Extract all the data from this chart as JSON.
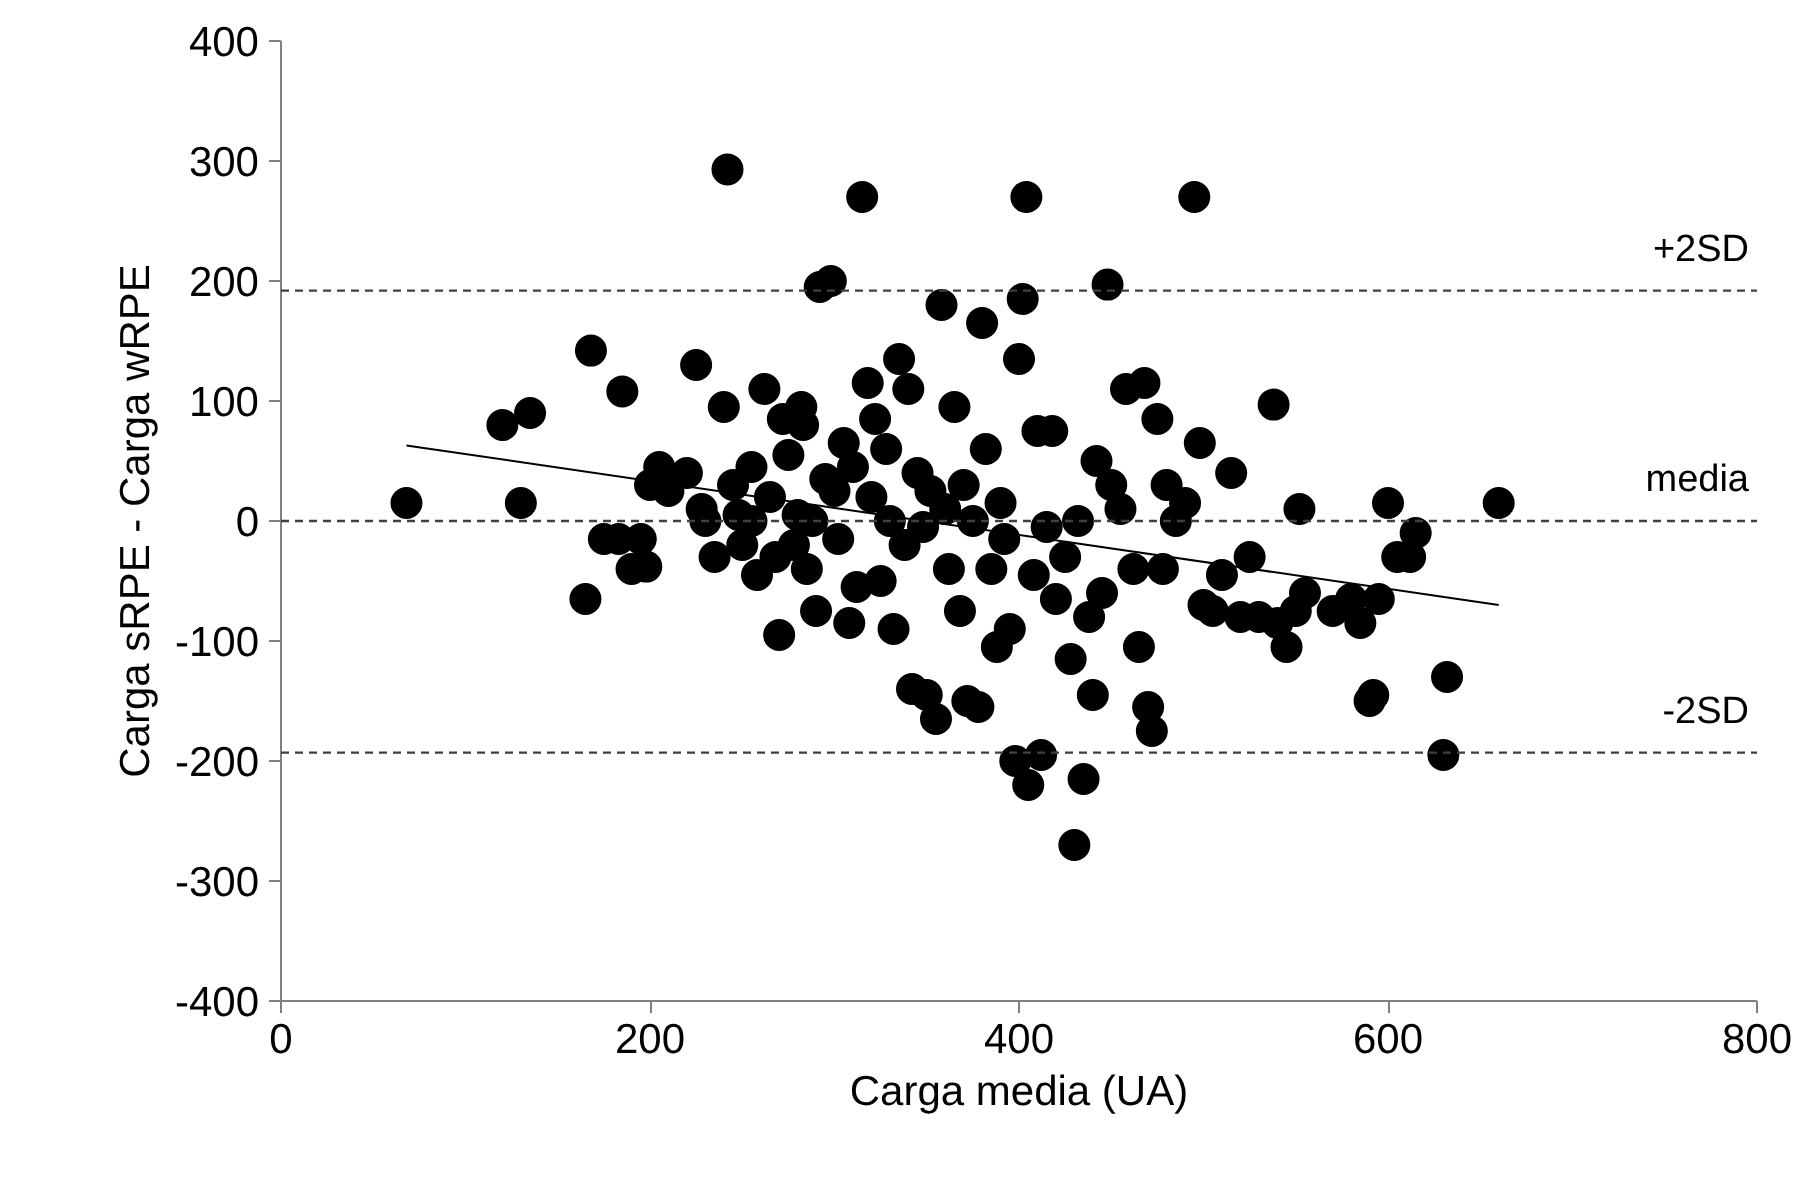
{
  "chart_data": {
    "type": "scatter",
    "xlabel": "Carga media (UA)",
    "ylabel": "Carga sRPE - Carga wRPE",
    "xlim": [
      0,
      800
    ],
    "xticks": [
      0,
      200,
      400,
      600,
      800
    ],
    "ylim": [
      -400,
      400
    ],
    "yticks": [
      -400,
      -300,
      -200,
      -100,
      0,
      100,
      200,
      300,
      400
    ],
    "grid": false,
    "series": [
      {
        "color": "#000000",
        "marker": "circle",
        "x": [
          68,
          120,
          130,
          135,
          165,
          168,
          175,
          185,
          183,
          190,
          195,
          198,
          200,
          205,
          210,
          220,
          225,
          228,
          230,
          235,
          240,
          242,
          245,
          248,
          250,
          255,
          255,
          258,
          262,
          265,
          268,
          270,
          272,
          275,
          278,
          280,
          282,
          283,
          285,
          288,
          290,
          292,
          295,
          298,
          300,
          302,
          305,
          308,
          310,
          312,
          315,
          318,
          320,
          322,
          325,
          328,
          330,
          332,
          335,
          338,
          340,
          342,
          345,
          348,
          350,
          352,
          355,
          358,
          360,
          362,
          365,
          368,
          370,
          372,
          375,
          378,
          380,
          382,
          385,
          388,
          390,
          392,
          395,
          398,
          400,
          402,
          404,
          405,
          408,
          410,
          412,
          415,
          418,
          420,
          425,
          428,
          430,
          432,
          435,
          438,
          440,
          442,
          445,
          448,
          450,
          455,
          458,
          462,
          465,
          468,
          470,
          472,
          475,
          478,
          480,
          485,
          490,
          495,
          498,
          500,
          505,
          510,
          515,
          520,
          525,
          530,
          538,
          540,
          545,
          550,
          552,
          555,
          570,
          580,
          585,
          590,
          592,
          595,
          600,
          605,
          612,
          615,
          630,
          632,
          660
        ],
        "values": [
          15,
          80,
          15,
          90,
          -65,
          142,
          -15,
          108,
          -15,
          -40,
          -15,
          -38,
          30,
          45,
          25,
          40,
          130,
          10,
          0,
          -30,
          95,
          293,
          30,
          5,
          -20,
          45,
          0,
          -45,
          110,
          20,
          -30,
          -95,
          85,
          55,
          -20,
          5,
          95,
          80,
          -40,
          0,
          -75,
          195,
          35,
          200,
          25,
          -15,
          65,
          -85,
          45,
          -55,
          270,
          115,
          20,
          85,
          -50,
          60,
          0,
          -90,
          135,
          -20,
          110,
          -140,
          40,
          -5,
          -145,
          25,
          -165,
          180,
          10,
          -40,
          95,
          -75,
          30,
          -150,
          0,
          -155,
          165,
          60,
          -40,
          -105,
          15,
          -15,
          -90,
          -200,
          135,
          185,
          270,
          -220,
          -45,
          75,
          -195,
          -5,
          75,
          -65,
          -30,
          -115,
          -270,
          0,
          -215,
          -80,
          -145,
          50,
          -60,
          197,
          30,
          10,
          110,
          -40,
          -105,
          115,
          -155,
          -175,
          85,
          -40,
          30,
          0,
          15,
          270,
          65,
          -70,
          -75,
          -45,
          40,
          -80,
          -30,
          -80,
          97,
          -85,
          -105,
          -75,
          10,
          -60,
          -75,
          -65,
          -85,
          -150,
          -145,
          -65,
          15,
          -30,
          -30,
          -10,
          -195,
          -130,
          15
        ]
      },
      {
        "type": "line",
        "color": "#000000",
        "line_style": "solid",
        "x": [
          68,
          660
        ],
        "values": [
          63,
          -70
        ]
      }
    ],
    "ref_lines": [
      {
        "axis": "y",
        "value": 192,
        "label": "+2SD",
        "color": "#404040",
        "line_style": "dashed"
      },
      {
        "axis": "y",
        "value": 0,
        "label": "media",
        "color": "#404040",
        "line_style": "dashed"
      },
      {
        "axis": "y",
        "value": -193,
        "label": "-2SD",
        "color": "#404040",
        "line_style": "dashed"
      }
    ]
  }
}
